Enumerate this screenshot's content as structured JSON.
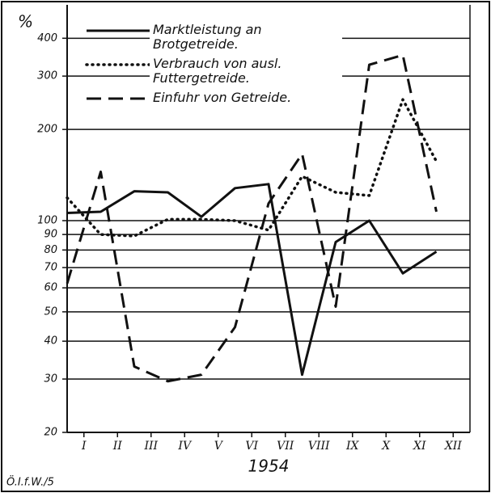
{
  "chart_data": {
    "type": "line",
    "title": "%",
    "xlabel": "1954",
    "annotation": "Ö.I.f.W./5",
    "x": [
      0,
      1,
      2,
      3,
      4,
      5,
      6,
      7,
      8,
      9,
      10,
      11
    ],
    "xlim": [
      0,
      12
    ],
    "xticks": [
      {
        "value": 0.5,
        "label": "I"
      },
      {
        "value": 1.5,
        "label": "II"
      },
      {
        "value": 2.5,
        "label": "III"
      },
      {
        "value": 3.5,
        "label": "IV"
      },
      {
        "value": 4.5,
        "label": "V"
      },
      {
        "value": 5.5,
        "label": "VI"
      },
      {
        "value": 6.5,
        "label": "VII"
      },
      {
        "value": 7.5,
        "label": "VIII"
      },
      {
        "value": 8.5,
        "label": "IX"
      },
      {
        "value": 9.5,
        "label": "X"
      },
      {
        "value": 10.5,
        "label": "XI"
      },
      {
        "value": 11.5,
        "label": "XII"
      }
    ],
    "ylim": [
      20,
      500
    ],
    "yscale": "log",
    "yticks": [
      20,
      30,
      40,
      50,
      60,
      70,
      80,
      90,
      100,
      200,
      300,
      400
    ],
    "grid": true,
    "legend": "upper left",
    "series": [
      {
        "name": "Marktleistung an Brotgetreide.",
        "color": "#111111",
        "style": "solid",
        "values": [
          106,
          107,
          125,
          124,
          103,
          128,
          132,
          31,
          85,
          100,
          67,
          79
        ]
      },
      {
        "name": "Verbrauch von ausl. Futtergetreide.",
        "color": "#111111",
        "style": "dotted",
        "values": [
          119,
          90,
          89,
          101,
          101,
          100,
          93,
          140,
          124,
          121,
          251,
          157
        ]
      },
      {
        "name": "Einfuhr von Getreide.",
        "color": "#111111",
        "style": "dashed",
        "values": [
          62,
          145,
          33,
          29.5,
          31,
          44.5,
          114,
          166,
          52,
          327,
          352,
          107
        ]
      }
    ]
  }
}
